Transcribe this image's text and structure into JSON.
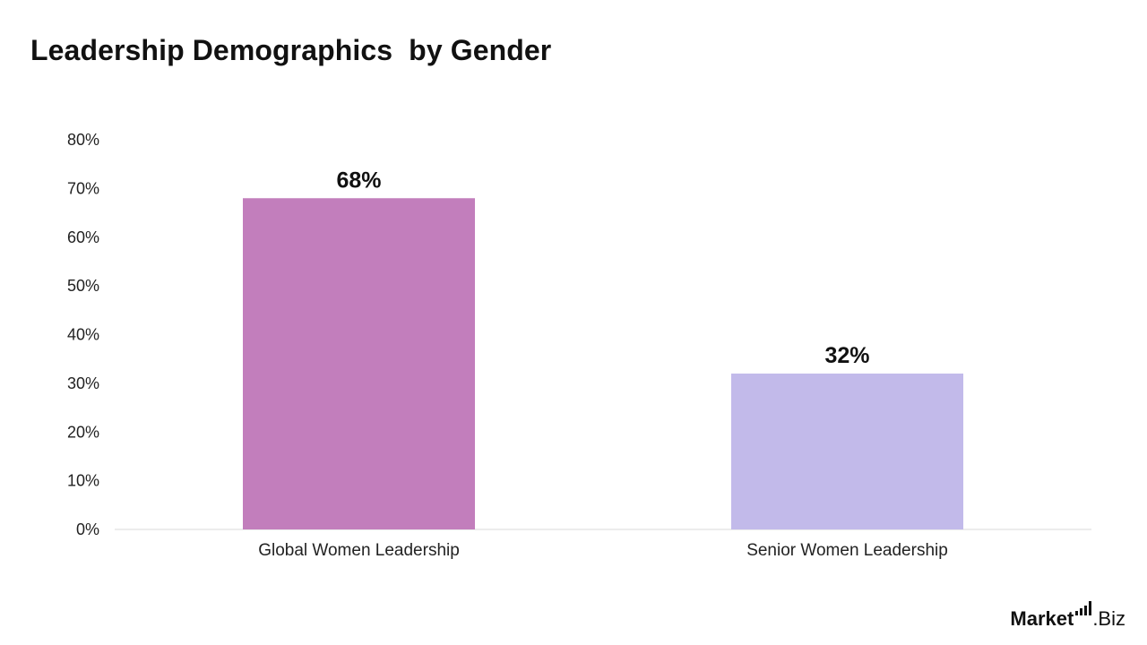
{
  "title": "Leadership Demographics  by Gender",
  "logo": {
    "brand": "Market",
    "suffix": ".Biz"
  },
  "colors": {
    "bar_global": "#c27ebc",
    "bar_senior": "#c2baea",
    "axis": "#d9d9d9"
  },
  "chart_data": {
    "type": "bar",
    "title": "Leadership Demographics  by Gender",
    "categories": [
      "Global Women Leadership",
      "Senior Women Leadership"
    ],
    "values": [
      68,
      32
    ],
    "value_labels": [
      "68%",
      "32%"
    ],
    "ylim": [
      0,
      80
    ],
    "yticks": [
      0,
      10,
      20,
      30,
      40,
      50,
      60,
      70,
      80
    ],
    "ytick_labels": [
      "0%",
      "10%",
      "20%",
      "30%",
      "40%",
      "50%",
      "60%",
      "70%",
      "80%"
    ],
    "xlabel": "",
    "ylabel": "",
    "grid": false,
    "legend": "none"
  }
}
